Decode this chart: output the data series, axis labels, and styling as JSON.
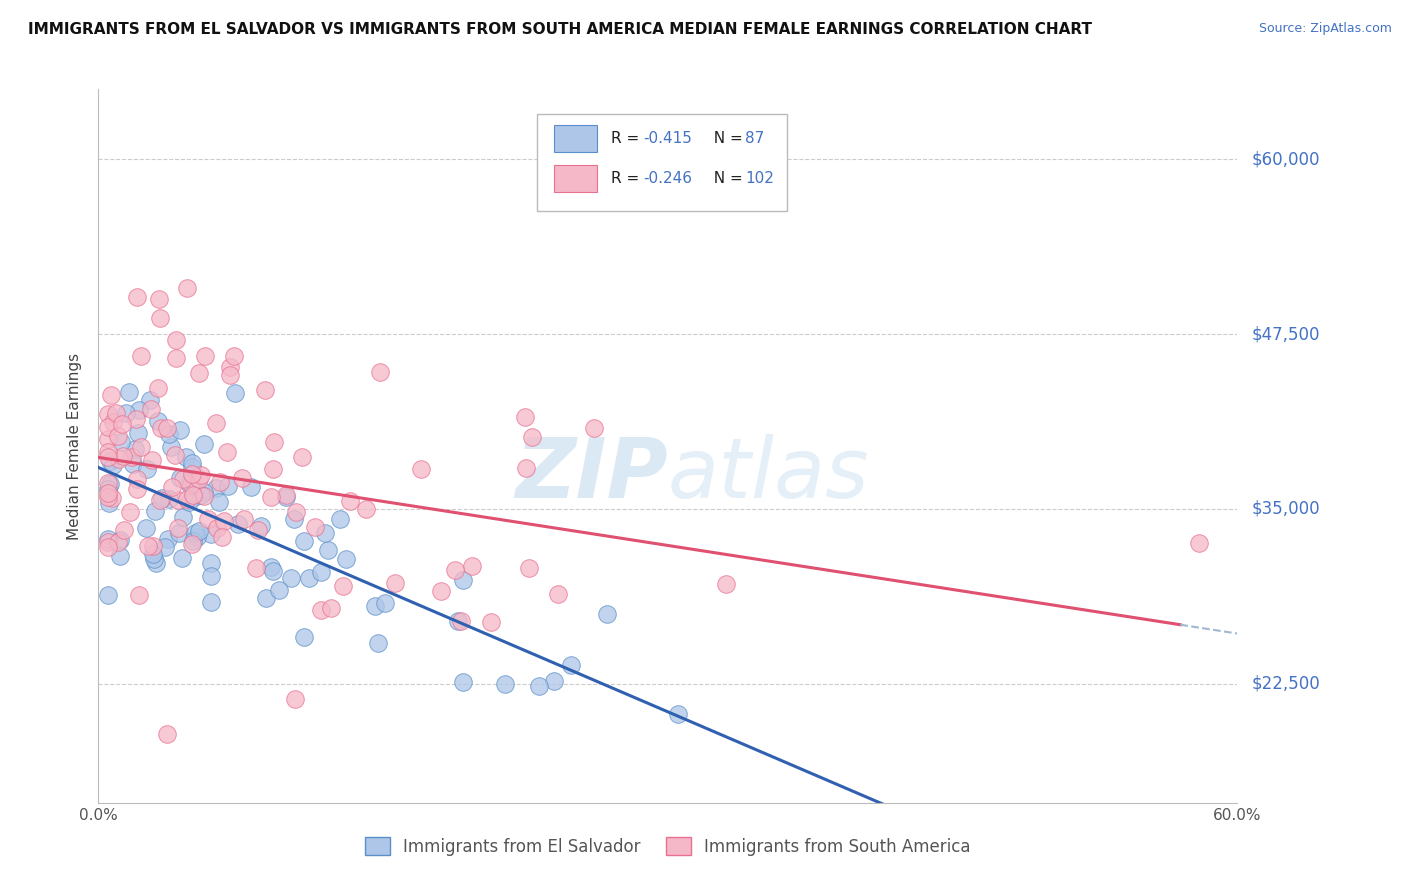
{
  "title": "IMMIGRANTS FROM EL SALVADOR VS IMMIGRANTS FROM SOUTH AMERICA MEDIAN FEMALE EARNINGS CORRELATION CHART",
  "source": "Source: ZipAtlas.com",
  "ylabel": "Median Female Earnings",
  "ytick_labels": [
    "$60,000",
    "$47,500",
    "$35,000",
    "$22,500"
  ],
  "ytick_values": [
    60000,
    47500,
    35000,
    22500
  ],
  "ylim": [
    14000,
    65000
  ],
  "xlim": [
    0.0,
    0.6
  ],
  "legend_r1": "-0.415",
  "legend_n1": "87",
  "legend_r2": "-0.246",
  "legend_n2": "102",
  "color_blue_fill": "#aec6e8",
  "color_blue_edge": "#5b8fc9",
  "color_pink_fill": "#f5b8c8",
  "color_pink_edge": "#e87090",
  "color_blue_line": "#3060b0",
  "color_pink_line": "#e05070",
  "color_dashed": "#a0b8d0",
  "color_label_blue": "#4472c4",
  "color_label_pink": "#e07090",
  "watermark_color": "#cce0f0",
  "label1": "Immigrants from El Salvador",
  "label2": "Immigrants from South America"
}
